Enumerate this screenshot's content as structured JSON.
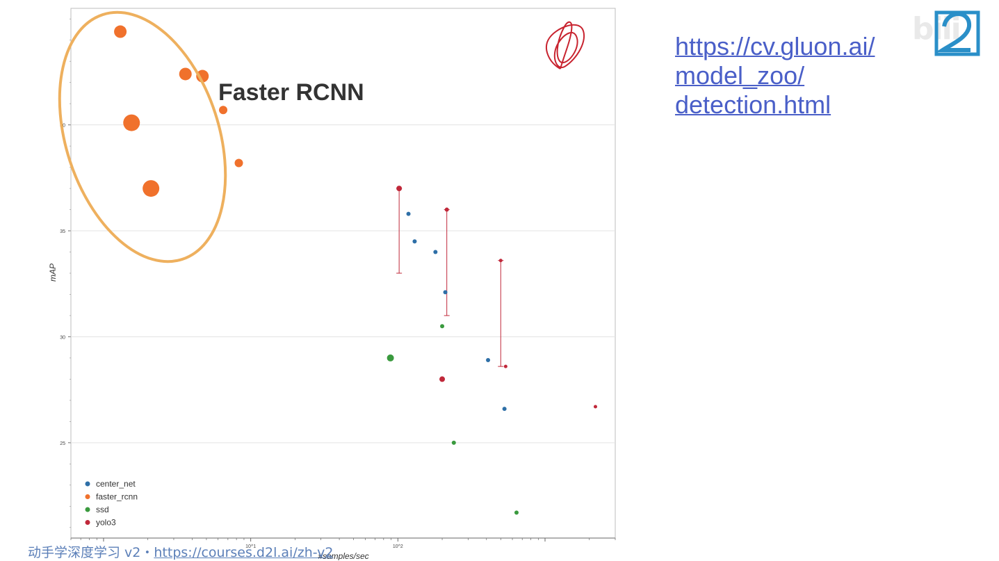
{
  "annotation": {
    "label": "Faster RCNN"
  },
  "link": {
    "lines": [
      "https://cv.gluon.ai/",
      "model_zoo/",
      "detection.html"
    ]
  },
  "footer": {
    "prefix": "动手学深度学习 v2・",
    "url": "https://courses.d2l.ai/zh-v2"
  },
  "watermark": {
    "text": "bili"
  },
  "colors": {
    "center_net": "#2e6fa7",
    "faster_rcnn": "#f0712c",
    "ssd": "#3a9a3e",
    "yolo3": "#c0283a",
    "ellipse": "#eeb05e",
    "scribble": "#c8232f",
    "link": "#4a5fc8"
  },
  "chart_data": {
    "type": "scatter",
    "xlabel": "#samples/sec",
    "ylabel": "mAP",
    "xscale": "log",
    "xlim": [
      0.6,
      3000
    ],
    "ylim": [
      20.5,
      45.5
    ],
    "xticks": [
      {
        "value": 10,
        "label": "10^1"
      },
      {
        "value": 100,
        "label": "10^2"
      }
    ],
    "yticks": [
      25,
      30,
      35,
      40
    ],
    "grid": "horizontal",
    "legend": "bottom-left",
    "series": [
      {
        "name": "center_net",
        "color_key": "center_net",
        "points": [
          {
            "x": 118,
            "y": 35.8,
            "r": 3
          },
          {
            "x": 130,
            "y": 34.5,
            "r": 3
          },
          {
            "x": 180,
            "y": 34.0,
            "r": 3
          },
          {
            "x": 210,
            "y": 32.1,
            "r": 3
          },
          {
            "x": 410,
            "y": 28.9,
            "r": 3
          },
          {
            "x": 530,
            "y": 26.6,
            "r": 3
          }
        ]
      },
      {
        "name": "faster_rcnn",
        "color_key": "faster_rcnn",
        "points": [
          {
            "x": 1.3,
            "y": 44.4,
            "r": 9
          },
          {
            "x": 3.6,
            "y": 42.4,
            "r": 9
          },
          {
            "x": 4.7,
            "y": 42.3,
            "r": 9
          },
          {
            "x": 1.55,
            "y": 40.1,
            "r": 12
          },
          {
            "x": 2.1,
            "y": 37.0,
            "r": 12
          },
          {
            "x": 6.5,
            "y": 40.7,
            "r": 6
          },
          {
            "x": 8.3,
            "y": 38.2,
            "r": 6
          }
        ]
      },
      {
        "name": "ssd",
        "color_key": "ssd",
        "points": [
          {
            "x": 89,
            "y": 29.0,
            "r": 5
          },
          {
            "x": 200,
            "y": 30.5,
            "r": 3
          },
          {
            "x": 240,
            "y": 25.0,
            "r": 3
          },
          {
            "x": 640,
            "y": 21.7,
            "r": 3
          }
        ]
      },
      {
        "name": "yolo3",
        "color_key": "yolo3",
        "points": [
          {
            "x": 102,
            "y": 37.0,
            "r": 4,
            "err": [
              33.0,
              37.0
            ]
          },
          {
            "x": 215,
            "y": 36.0,
            "r": 3,
            "err": [
              31.0,
              36.0
            ]
          },
          {
            "x": 500,
            "y": 33.6,
            "r": 2.5,
            "err": [
              28.6,
              33.6
            ]
          },
          {
            "x": 200,
            "y": 28.0,
            "r": 4
          },
          {
            "x": 540,
            "y": 28.6,
            "r": 2.5
          },
          {
            "x": 2200,
            "y": 26.7,
            "r": 2.5
          }
        ]
      }
    ]
  }
}
